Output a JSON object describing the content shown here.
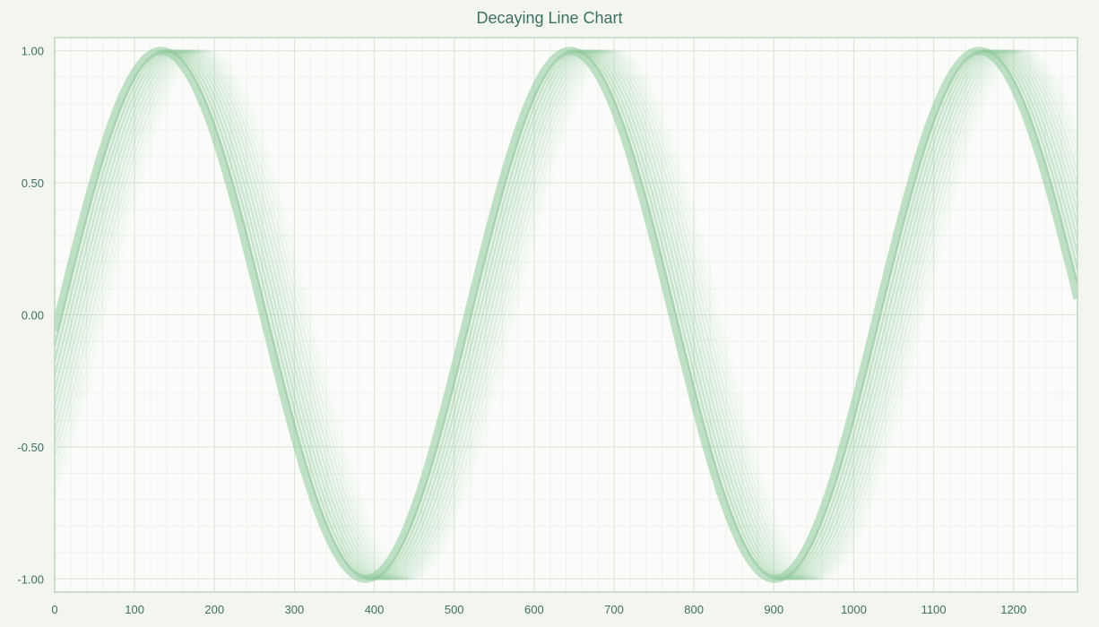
{
  "chart_data": {
    "type": "line",
    "title": "Decaying Line Chart",
    "xlabel": "",
    "ylabel": "",
    "xlim": [
      0,
      1280
    ],
    "ylim": [
      -1.05,
      1.05
    ],
    "grid": true,
    "x_ticks": [
      0,
      100,
      200,
      300,
      400,
      500,
      600,
      700,
      800,
      900,
      1000,
      1100,
      1200
    ],
    "y_ticks": [
      1.0,
      0.5,
      0.0,
      -0.5,
      -1.0
    ],
    "x_tick_labels": [
      "0",
      "100",
      "200",
      "300",
      "400",
      "500",
      "600",
      "700",
      "800",
      "900",
      "1000",
      "1100",
      "1200"
    ],
    "y_tick_labels": [
      "1.00",
      "0.50",
      "0.00",
      "-0.50",
      "-1.00"
    ],
    "series_model": {
      "function": "sine",
      "amplitude": 1.0,
      "period": 512,
      "peak_x": [
        133,
        645,
        1157
      ],
      "trough_x": [
        389,
        901
      ],
      "x_end": 1280,
      "trace_count": 14,
      "phase_lag_max": 60,
      "newest_opacity": 0.55,
      "oldest_opacity": 0.04
    },
    "colors": {
      "line": "#8ec99a",
      "background": "#f2f6ef",
      "plot_background": "#fbfcfa",
      "grid_major": "#dfe7dd",
      "grid_minor": "#eef2ec",
      "border": "#bcd6bf",
      "text": "#3f6f63"
    }
  }
}
